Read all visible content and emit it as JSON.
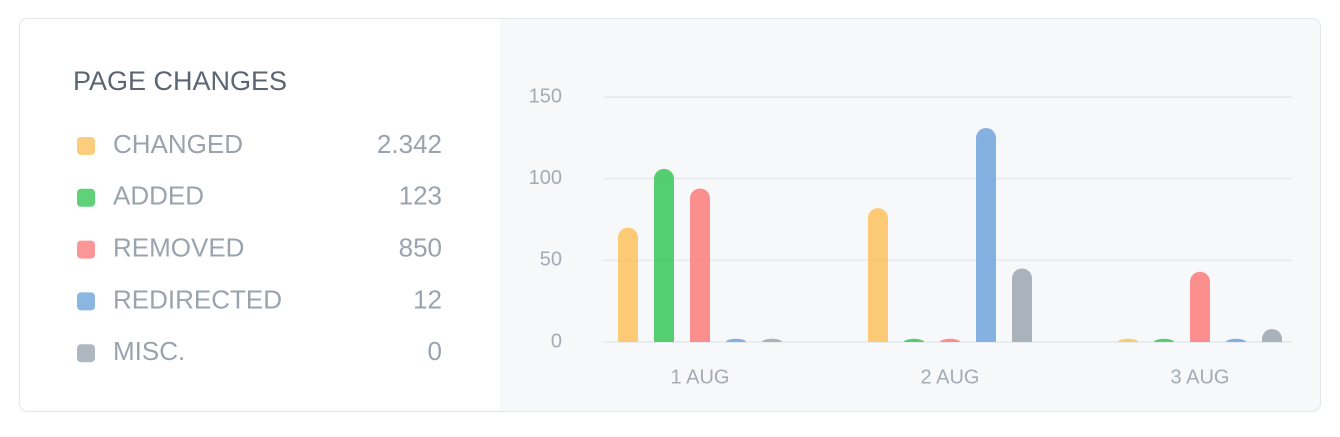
{
  "chart_data": {
    "type": "bar",
    "title": "PAGE CHANGES",
    "categories": [
      "1 AUG",
      "2 AUG",
      "3 AUG"
    ],
    "series": [
      {
        "name": "CHANGED",
        "color": "#fcc465",
        "total": "2.342",
        "values": [
          70,
          82,
          2
        ]
      },
      {
        "name": "ADDED",
        "color": "#42c962",
        "total": "123",
        "values": [
          106,
          2,
          2
        ]
      },
      {
        "name": "REMOVED",
        "color": "#fb8382",
        "total": "850",
        "values": [
          94,
          2,
          43
        ]
      },
      {
        "name": "REDIRECTED",
        "color": "#77a9dd",
        "total": "12",
        "values": [
          2,
          131,
          2
        ]
      },
      {
        "name": "MISC.",
        "color": "#a1aab5",
        "total": "0",
        "values": [
          2,
          45,
          8
        ]
      }
    ],
    "ylim": [
      0,
      150
    ],
    "yticks": [
      0,
      50,
      100,
      150
    ],
    "grid": true
  }
}
